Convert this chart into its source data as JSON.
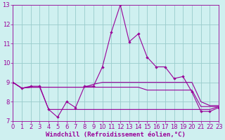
{
  "x": [
    0,
    1,
    2,
    3,
    4,
    5,
    6,
    7,
    8,
    9,
    10,
    11,
    12,
    13,
    14,
    15,
    16,
    17,
    18,
    19,
    20,
    21,
    22,
    23
  ],
  "line1": [
    9.0,
    8.7,
    8.8,
    8.8,
    7.6,
    7.2,
    8.0,
    7.7,
    8.8,
    8.8,
    9.8,
    11.6,
    13.0,
    11.1,
    11.5,
    10.3,
    9.8,
    9.8,
    9.2,
    9.3,
    8.5,
    7.5,
    7.5,
    7.7
  ],
  "line2_x": [
    0,
    1,
    2,
    3,
    4,
    5,
    6,
    7,
    8,
    9,
    10,
    11,
    12,
    13,
    14,
    15,
    16,
    17,
    18,
    19,
    20,
    21,
    22,
    23
  ],
  "line2": [
    9.0,
    8.7,
    8.75,
    8.75,
    8.75,
    8.75,
    8.75,
    8.75,
    8.75,
    8.9,
    9.0,
    9.0,
    9.0,
    9.0,
    9.0,
    9.0,
    9.0,
    9.0,
    9.0,
    9.0,
    9.0,
    8.0,
    7.8,
    7.8
  ],
  "line3_x": [
    0,
    1,
    2,
    3,
    4,
    5,
    6,
    7,
    8,
    9,
    10,
    11,
    12,
    13,
    14,
    15,
    16,
    17,
    18,
    19,
    20,
    21,
    22,
    23
  ],
  "line3": [
    9.0,
    8.7,
    8.75,
    8.75,
    8.75,
    8.75,
    8.75,
    8.75,
    8.75,
    8.75,
    8.75,
    8.75,
    8.75,
    8.75,
    8.75,
    8.6,
    8.6,
    8.6,
    8.6,
    8.6,
    8.6,
    7.75,
    7.75,
    7.75
  ],
  "line4": [
    9.0,
    8.7,
    8.75,
    8.75,
    7.6,
    7.6,
    7.6,
    7.6,
    7.6,
    7.6,
    7.6,
    7.6,
    7.6,
    7.6,
    7.6,
    7.6,
    7.6,
    7.6,
    7.6,
    7.6,
    7.6,
    7.6,
    7.6,
    7.75
  ],
  "line_color": "#990099",
  "bg_color": "#cff0f0",
  "grid_color": "#99cccc",
  "xlabel": "Windchill (Refroidissement éolien,°C)",
  "xlabel_fontsize": 6.5,
  "tick_fontsize": 6.0,
  "ylim": [
    7,
    13
  ],
  "xlim": [
    0,
    23
  ],
  "yticks": [
    7,
    8,
    9,
    10,
    11,
    12,
    13
  ],
  "xticks": [
    0,
    1,
    2,
    3,
    4,
    5,
    6,
    7,
    8,
    9,
    10,
    11,
    12,
    13,
    14,
    15,
    16,
    17,
    18,
    19,
    20,
    21,
    22,
    23
  ]
}
